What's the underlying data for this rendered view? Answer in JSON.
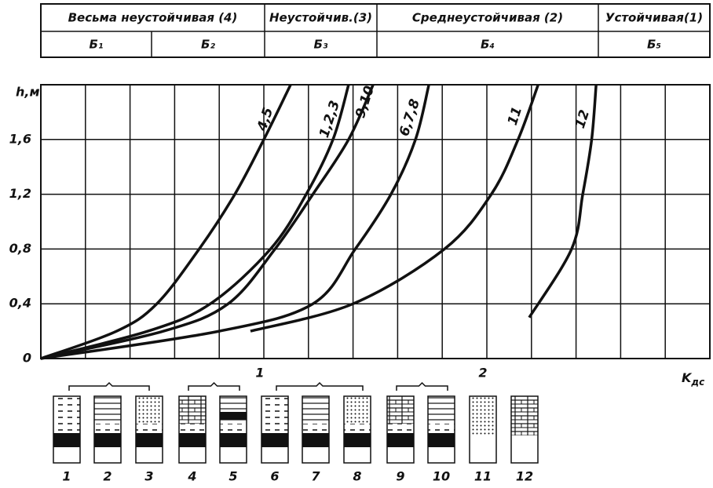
{
  "table": {
    "header": [
      "Весьма неустойчивая (4)",
      "Неустойчив.(3)",
      "Среднеустойчивая (2)",
      "Устойчивая(1)"
    ],
    "subheader": [
      "Б₁",
      "Б₂",
      "Б₃",
      "Б₄",
      "Б₅"
    ]
  },
  "chart_data": {
    "type": "line",
    "y_label": "h,м",
    "x_label": "K",
    "x_label_sub": "дс",
    "xlim": [
      0,
      3
    ],
    "ylim": [
      0,
      2.0
    ],
    "xticks": [
      1,
      2
    ],
    "xgrid": [
      0.2,
      0.4,
      0.6,
      0.8,
      1.0,
      1.2,
      1.4,
      1.6,
      1.8,
      2.0,
      2.2,
      2.4,
      2.6,
      2.8
    ],
    "yticks": [
      {
        "value": 0,
        "label": "0"
      },
      {
        "value": 0.4,
        "label": "0,4"
      },
      {
        "value": 0.8,
        "label": "0,8"
      },
      {
        "value": 1.2,
        "label": "1,2"
      },
      {
        "value": 1.6,
        "label": "1,6"
      }
    ],
    "grid": true,
    "color": "#111",
    "series": [
      {
        "name": "4,5",
        "x": [
          0,
          0.34,
          0.52,
          0.71,
          0.87,
          1.0,
          1.12
        ],
        "values": [
          0,
          0.2,
          0.4,
          0.8,
          1.2,
          1.6,
          2.0
        ]
      },
      {
        "name": "1,2,3",
        "x": [
          0,
          0.48,
          0.76,
          1.03,
          1.19,
          1.31,
          1.38
        ],
        "values": [
          0,
          0.2,
          0.4,
          0.8,
          1.2,
          1.6,
          2.0
        ]
      },
      {
        "name": "9,10",
        "x": [
          0,
          0.55,
          0.84,
          1.05,
          1.22,
          1.38,
          1.49
        ],
        "values": [
          0,
          0.2,
          0.4,
          0.8,
          1.2,
          1.6,
          2.0
        ]
      },
      {
        "name": "6,7,8",
        "x": [
          0,
          0.8,
          1.22,
          1.41,
          1.57,
          1.68,
          1.74
        ],
        "values": [
          0,
          0.2,
          0.4,
          0.8,
          1.2,
          1.6,
          2.0
        ]
      },
      {
        "name": "11",
        "x": [
          0.94,
          1.4,
          1.81,
          2.02,
          2.14,
          2.23
        ],
        "values": [
          0.2,
          0.4,
          0.8,
          1.2,
          1.6,
          2.0
        ]
      },
      {
        "name": "12",
        "x": [
          2.19,
          2.38,
          2.43,
          2.47,
          2.49
        ],
        "values": [
          0.3,
          0.8,
          1.2,
          1.6,
          2.0
        ]
      }
    ]
  },
  "columns": [
    "1",
    "2",
    "3",
    "4",
    "5",
    "6",
    "7",
    "8",
    "9",
    "10",
    "11",
    "12"
  ]
}
